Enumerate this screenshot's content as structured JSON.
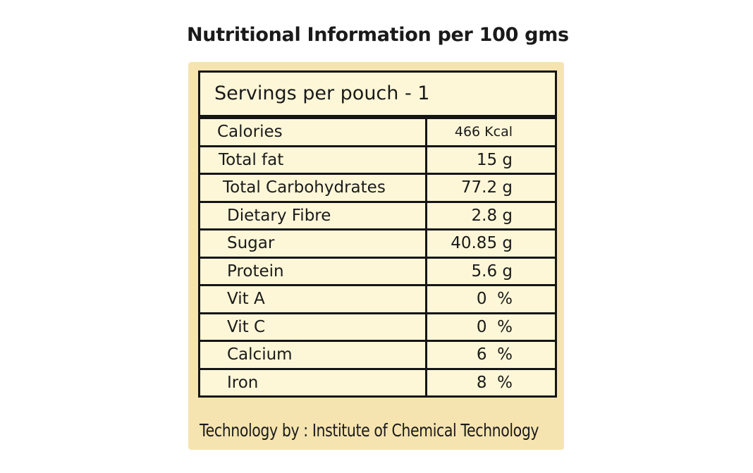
{
  "title": "Nutritional Information per 100 gms",
  "table": {
    "header": "Servings per pouch - 1",
    "rows": [
      [
        "Calories",
        "466 Kcal"
      ],
      [
        "Total fat",
        "15 g"
      ],
      [
        "Total Carbohydrates",
        "77.2 g"
      ],
      [
        "Dietary Fibre",
        "2.8 g"
      ],
      [
        "Sugar",
        "40.85 g"
      ],
      [
        "Protein",
        "5.6 g"
      ],
      [
        "Vit A",
        "0  %"
      ],
      [
        "Vit C",
        "0  %"
      ],
      [
        "Calcium",
        "6  %"
      ],
      [
        "Iron",
        "8  %"
      ]
    ]
  },
  "footer": "Technology by : Institute of Chemical Technology"
}
